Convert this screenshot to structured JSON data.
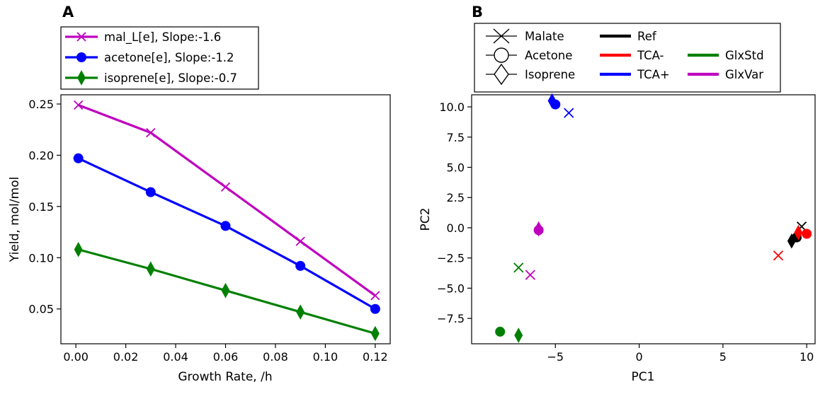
{
  "panels": [
    "A",
    "B"
  ],
  "chart_data": [
    {
      "type": "line",
      "title": "",
      "xlabel": "Growth Rate, /h",
      "ylabel": "Yield, mol/mol",
      "xlim": [
        -0.006,
        0.126
      ],
      "ylim": [
        0.016,
        0.259
      ],
      "xticks": [
        0.0,
        0.02,
        0.04,
        0.06,
        0.08,
        0.1,
        0.12
      ],
      "xtick_labels": [
        "0.00",
        "0.02",
        "0.04",
        "0.06",
        "0.08",
        "0.10",
        "0.12"
      ],
      "yticks": [
        0.05,
        0.1,
        0.15,
        0.2,
        0.25
      ],
      "ytick_labels": [
        "0.05",
        "0.10",
        "0.15",
        "0.20",
        "0.25"
      ],
      "grid": false,
      "legend_position": "above the plot",
      "x": [
        0.001,
        0.03,
        0.06,
        0.09,
        0.12
      ],
      "series": [
        {
          "name": "mal_L[e], Slope:-1.6",
          "color": "#bf00bf",
          "marker": "x",
          "values": [
            0.249,
            0.222,
            0.169,
            0.116,
            0.063
          ]
        },
        {
          "name": "acetone[e], Slope:-1.2",
          "color": "#0000ff",
          "marker": "circle",
          "values": [
            0.197,
            0.164,
            0.131,
            0.092,
            0.05
          ]
        },
        {
          "name": "isoprene[e], Slope:-0.7",
          "color": "#008000",
          "marker": "diamond",
          "values": [
            0.108,
            0.089,
            0.068,
            0.047,
            0.026
          ]
        }
      ]
    },
    {
      "type": "scatter",
      "title": "",
      "xlabel": "PC1",
      "ylabel": "PC2",
      "xlim": [
        -10,
        10.5
      ],
      "ylim": [
        -9.6,
        11.0
      ],
      "xticks": [
        -5,
        0,
        5,
        10
      ],
      "xtick_labels": [
        "−5",
        "0",
        "5",
        "10"
      ],
      "yticks": [
        -7.5,
        -5.0,
        -2.5,
        0.0,
        2.5,
        5.0,
        7.5,
        10.0
      ],
      "ytick_labels": [
        "−7.5",
        "−5.0",
        "−2.5",
        "0.0",
        "2.5",
        "5.0",
        "7.5",
        "10.0"
      ],
      "grid": false,
      "legend_position": "above the plot",
      "legend_markers": [
        {
          "label": "Malate",
          "marker": "x"
        },
        {
          "label": "Acetone",
          "marker": "circle"
        },
        {
          "label": "Isoprene",
          "marker": "diamond"
        }
      ],
      "legend_colors": [
        {
          "label": "Ref",
          "color": "#000000"
        },
        {
          "label": "TCA-",
          "color": "#ff0000"
        },
        {
          "label": "TCA+",
          "color": "#0000ff"
        },
        {
          "label": "GlxStd",
          "color": "#008000"
        },
        {
          "label": "GlxVar",
          "color": "#bf00bf"
        }
      ],
      "points": [
        {
          "group": "Ref",
          "compound": "Malate",
          "marker": "x",
          "color": "#000000",
          "x": 9.7,
          "y": 0.1
        },
        {
          "group": "Ref",
          "compound": "Acetone",
          "marker": "circle",
          "color": "#000000",
          "x": 9.4,
          "y": -0.8
        },
        {
          "group": "Ref",
          "compound": "Isoprene",
          "marker": "diamond",
          "color": "#000000",
          "x": 9.1,
          "y": -1.1
        },
        {
          "group": "TCA-",
          "compound": "Malate",
          "marker": "x",
          "color": "#ff0000",
          "x": 8.3,
          "y": -2.3
        },
        {
          "group": "TCA-",
          "compound": "Acetone",
          "marker": "circle",
          "color": "#ff0000",
          "x": 10.0,
          "y": -0.5
        },
        {
          "group": "TCA-",
          "compound": "Isoprene",
          "marker": "diamond",
          "color": "#ff0000",
          "x": 9.5,
          "y": -0.4
        },
        {
          "group": "TCA+",
          "compound": "Malate",
          "marker": "x",
          "color": "#0000ff",
          "x": -4.2,
          "y": 9.5
        },
        {
          "group": "TCA+",
          "compound": "Acetone",
          "marker": "circle",
          "color": "#0000ff",
          "x": -5.0,
          "y": 10.2
        },
        {
          "group": "TCA+",
          "compound": "Isoprene",
          "marker": "diamond",
          "color": "#0000ff",
          "x": -5.2,
          "y": 10.5
        },
        {
          "group": "GlxStd",
          "compound": "Malate",
          "marker": "x",
          "color": "#008000",
          "x": -7.2,
          "y": -3.3
        },
        {
          "group": "GlxStd",
          "compound": "Acetone",
          "marker": "circle",
          "color": "#008000",
          "x": -8.3,
          "y": -8.6
        },
        {
          "group": "GlxStd",
          "compound": "Isoprene",
          "marker": "diamond",
          "color": "#008000",
          "x": -7.2,
          "y": -8.9
        },
        {
          "group": "GlxVar",
          "compound": "Malate",
          "marker": "x",
          "color": "#bf00bf",
          "x": -6.5,
          "y": -3.9
        },
        {
          "group": "GlxVar",
          "compound": "Acetone",
          "marker": "circle",
          "color": "#bf00bf",
          "x": -6.0,
          "y": -0.2
        },
        {
          "group": "GlxVar",
          "compound": "Isoprene",
          "marker": "diamond",
          "color": "#bf00bf",
          "x": -6.0,
          "y": -0.1
        }
      ]
    }
  ]
}
